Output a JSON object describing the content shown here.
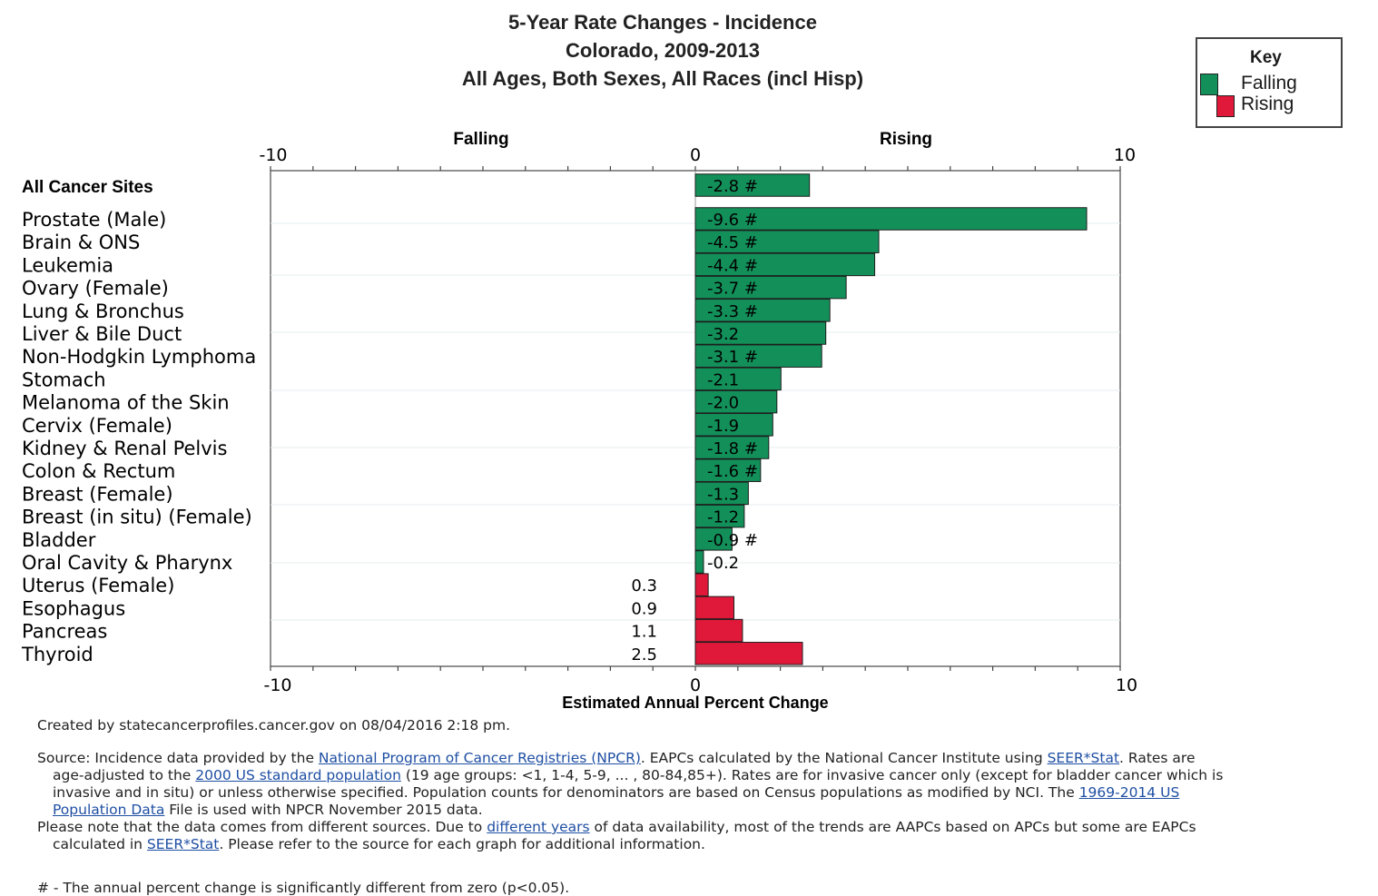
{
  "title_lines": [
    "5-Year Rate Changes - Incidence",
    "Colorado, 2009-2013",
    "All Ages, Both Sexes, All Races (incl Hisp)"
  ],
  "key": {
    "title": "Key",
    "falling_label": "Falling",
    "rising_label": "Rising",
    "falling_color": "#13905a",
    "rising_color": "#e0193a"
  },
  "chart_data": {
    "type": "bar",
    "orientation": "horizontal",
    "top_labels": {
      "falling": "Falling",
      "rising": "Rising"
    },
    "xlabel": "Estimated Annual Percent Change",
    "xlim": [
      -10,
      10
    ],
    "x_ticks": [
      "-10",
      "0",
      "10"
    ],
    "categories": [
      "All Cancer Sites",
      "Prostate (Male)",
      "Brain & ONS",
      "Leukemia",
      "Ovary (Female)",
      "Lung & Bronchus",
      "Liver & Bile Duct",
      "Non-Hodgkin Lymphoma",
      "Stomach",
      "Melanoma of the Skin",
      "Cervix (Female)",
      "Kidney & Renal Pelvis",
      "Colon & Rectum",
      "Breast (Female)",
      "Breast (in situ) (Female)",
      "Bladder",
      "Oral Cavity & Pharynx",
      "Uterus (Female)",
      "Esophagus",
      "Pancreas",
      "Thyroid"
    ],
    "values": [
      -2.8,
      -9.6,
      -4.5,
      -4.4,
      -3.7,
      -3.3,
      -3.2,
      -3.1,
      -2.1,
      -2.0,
      -1.9,
      -1.8,
      -1.6,
      -1.3,
      -1.2,
      -0.9,
      -0.2,
      0.3,
      0.9,
      1.1,
      2.5
    ],
    "value_labels": [
      "-2.8 #",
      "-9.6 #",
      "-4.5 #",
      "-4.4 #",
      "-3.7 #",
      "-3.3 #",
      "-3.2",
      "-3.1 #",
      "-2.1",
      "-2.0",
      "-1.9",
      "-1.8 #",
      "-1.6 #",
      "-1.3",
      "-1.2",
      "-0.9 #",
      "-0.2",
      "0.3",
      "0.9",
      "1.1",
      "2.5"
    ]
  },
  "footer": {
    "created": "Created by statecancerprofiles.cancer.gov on 08/04/2016 2:18 pm.",
    "source_prefix": "Source: Incidence data provided by the ",
    "link_npcr": "National Program of Cancer Registries (NPCR)",
    "source_mid1": ". EAPCs calculated by the National Cancer Institute using ",
    "link_seerstat": "SEER*Stat",
    "source_mid2": ". Rates are",
    "line2_prefix": "age-adjusted to the ",
    "link_2000": "2000 US standard population",
    "line2_suffix": " (19 age groups: <1, 1-4, 5-9, ... , 80-84,85+). Rates are for invasive cancer only (except for bladder cancer which is",
    "line3_prefix": "invasive and in situ) or unless otherwise specified. Population counts for denominators are based on Census populations as modified by NCI. The ",
    "link_1969": "1969-2014 US",
    "link_popdata": "Population Data",
    "line4_suffix": " File is used with NPCR November 2015 data.",
    "note_prefix": "Please note that the data comes from different sources. Due to ",
    "link_diffyears": "different years",
    "note_suffix": " of data availability, most of the trends are AAPCs based on APCs but some are EAPCs",
    "line6_prefix": "calculated in ",
    "link_seerstat2": "SEER*Stat",
    "line6_suffix": ". Please refer to the source for each graph for additional information.",
    "significance_note": "# - The annual percent change is significantly different from zero (p<0.05)."
  }
}
